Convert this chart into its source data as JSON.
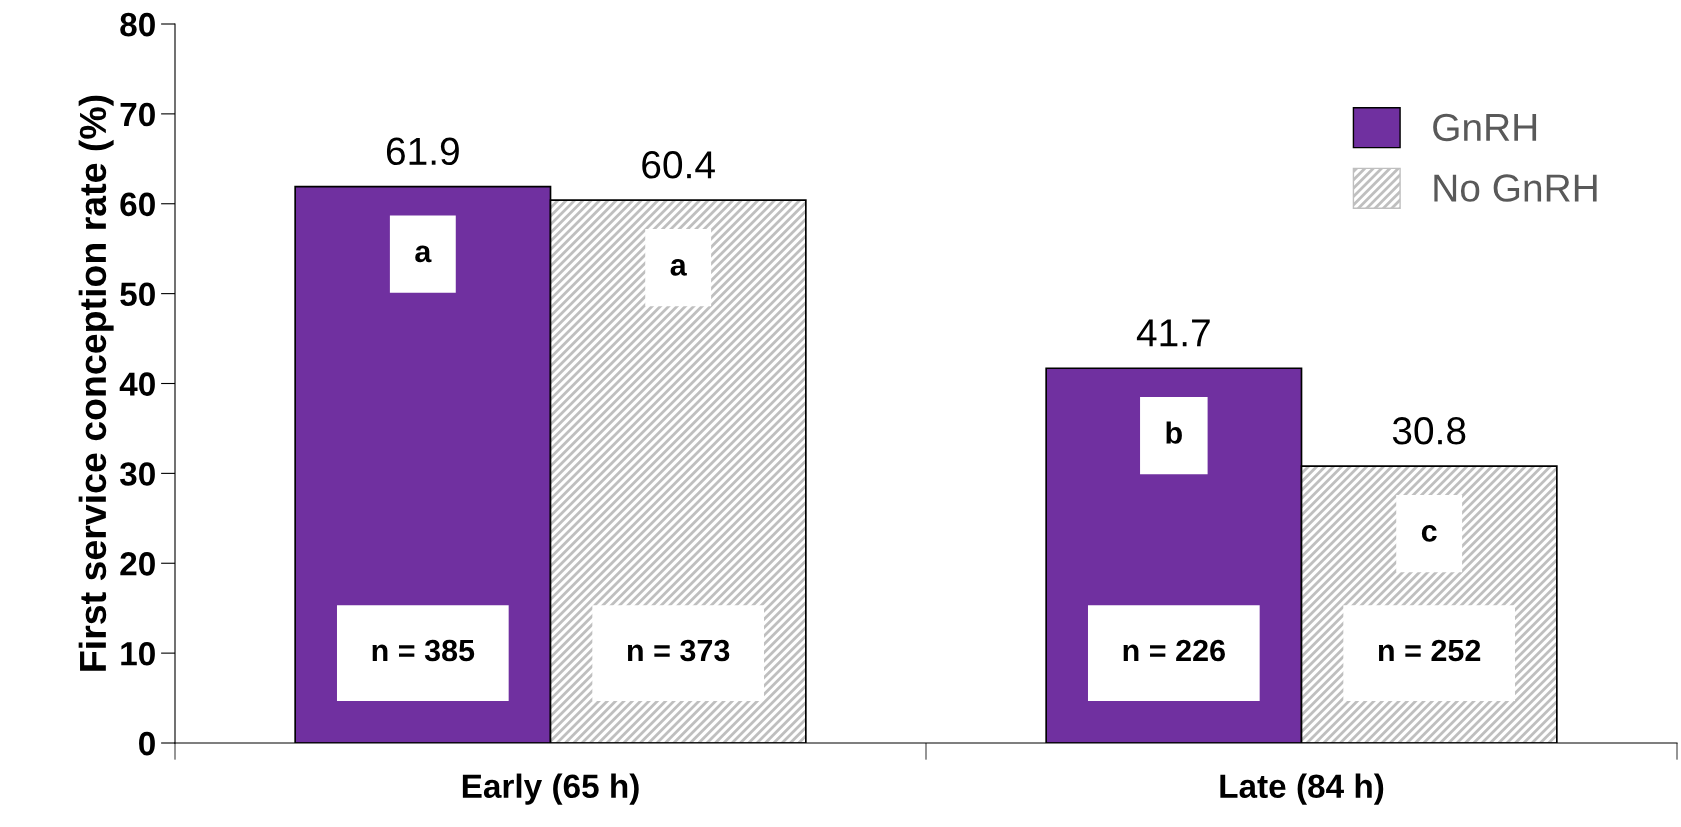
{
  "chart_data": {
    "type": "bar",
    "ylabel": "First service conception rate (%)",
    "categories": [
      "Early (65 h)",
      "Late (84 h)"
    ],
    "series": [
      {
        "name": "GnRH",
        "color": "#7030a0",
        "values": [
          61.9,
          41.7
        ]
      },
      {
        "name": "No GnRH",
        "color": "#bfbfbf",
        "values": [
          60.4,
          30.8
        ]
      }
    ],
    "ylim": [
      0,
      80
    ],
    "yticks": [
      0,
      10,
      20,
      30,
      40,
      50,
      60,
      70,
      80
    ],
    "data_labels": true,
    "grid": false,
    "legend": "top right",
    "annotations": [
      "a",
      "b",
      "a",
      "c",
      "n = 385",
      "n = 226",
      "n = 373",
      "n = 252"
    ]
  }
}
